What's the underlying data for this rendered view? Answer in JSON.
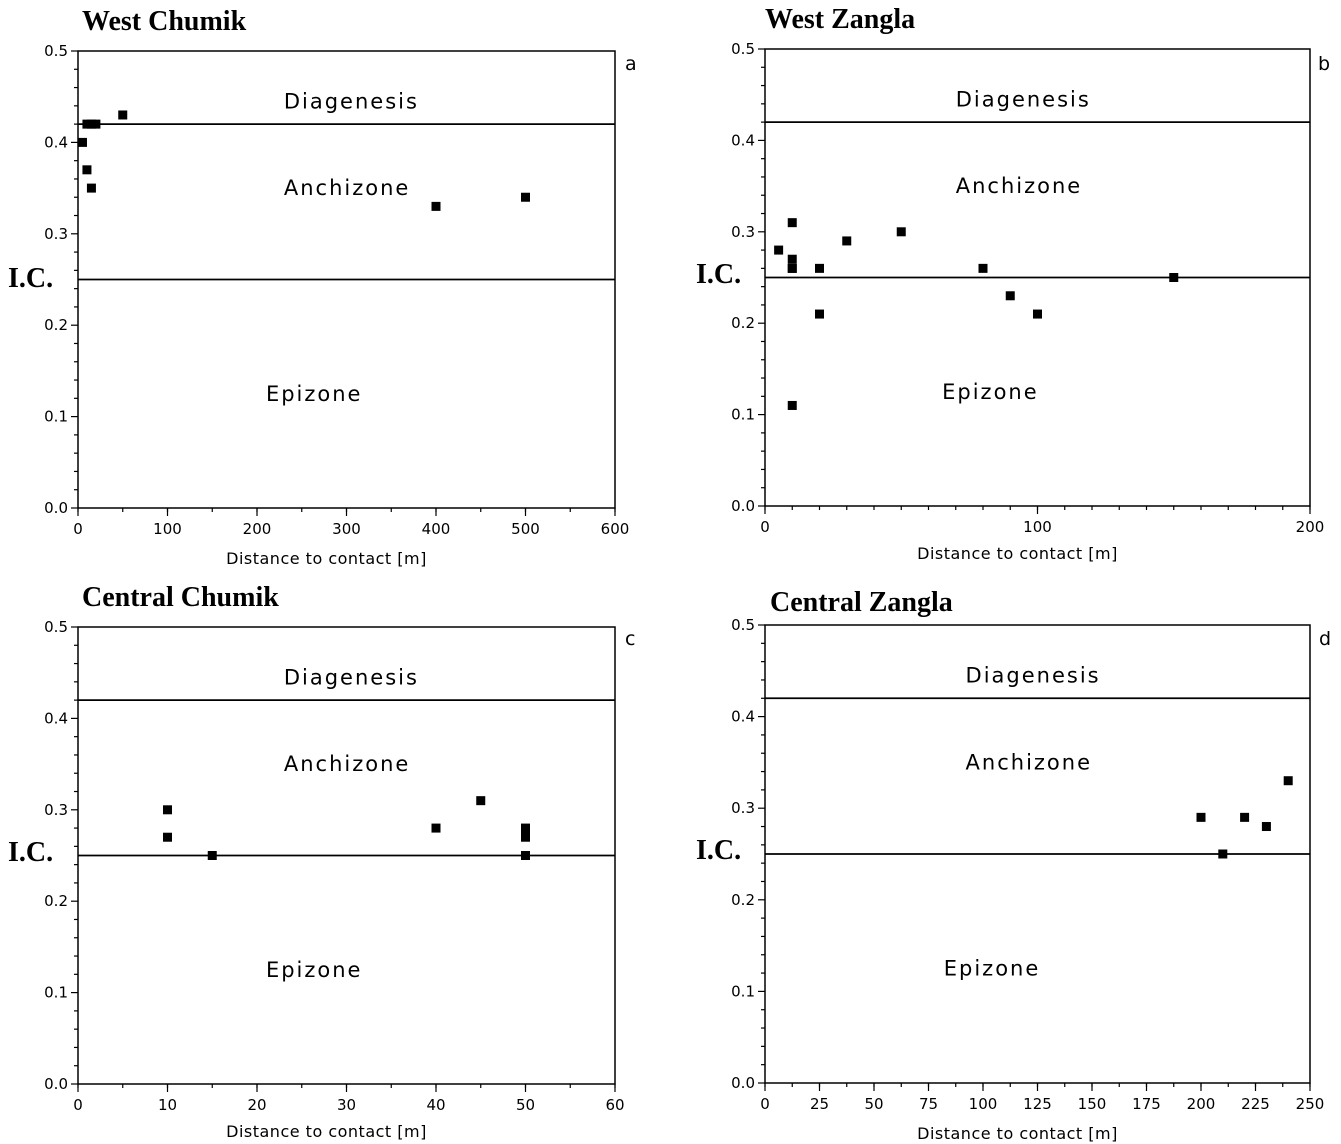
{
  "chart_data": [
    {
      "type": "scatter",
      "title": "West Chumik",
      "panel_label": "a",
      "xlabel": "Distance  to  contact  [m]",
      "ylabel": "I.C.",
      "xlim": [
        0,
        600
      ],
      "ylim": [
        0.0,
        0.5
      ],
      "xticks": [
        0,
        100,
        200,
        300,
        400,
        500,
        600
      ],
      "xtick_labels": [
        "0",
        "100",
        "200",
        "300",
        "400",
        "500",
        "600"
      ],
      "x_minor_step": 50,
      "yticks": [
        0.0,
        0.1,
        0.2,
        0.3,
        0.4,
        0.5
      ],
      "ytick_labels": [
        "0.0",
        "0.1",
        "0.2",
        "0.3",
        "0.4",
        "0.5"
      ],
      "zone_boundaries": [
        0.42,
        0.25
      ],
      "zones": [
        {
          "name": "Diagenesis",
          "y": 0.445,
          "x": 230
        },
        {
          "name": "Anchizone",
          "y": 0.35,
          "x": 230
        },
        {
          "name": "Epizone",
          "y": 0.125,
          "x": 210
        }
      ],
      "series": [
        {
          "x": [
            5,
            10,
            15,
            20,
            50,
            10,
            15,
            400,
            500
          ],
          "y": [
            0.4,
            0.42,
            0.42,
            0.42,
            0.43,
            0.37,
            0.35,
            0.33,
            0.34
          ]
        }
      ]
    },
    {
      "type": "scatter",
      "title": "West Zangla",
      "panel_label": "b",
      "xlabel": "Distance  to  contact  [m]",
      "ylabel": "I.C.",
      "xlim": [
        0,
        200
      ],
      "ylim": [
        0.0,
        0.5
      ],
      "xticks": [
        0,
        100,
        200
      ],
      "xtick_labels": [
        "0",
        "100",
        "200"
      ],
      "x_minor_step": 10,
      "yticks": [
        0.0,
        0.1,
        0.2,
        0.3,
        0.4,
        0.5
      ],
      "ytick_labels": [
        "0.0",
        "0.1",
        "0.2",
        "0.3",
        "0.4",
        "0.5"
      ],
      "zone_boundaries": [
        0.42,
        0.25
      ],
      "zones": [
        {
          "name": "Diagenesis",
          "y": 0.445,
          "x": 70
        },
        {
          "name": "Anchizone",
          "y": 0.35,
          "x": 70
        },
        {
          "name": "Epizone",
          "y": 0.125,
          "x": 65
        }
      ],
      "series": [
        {
          "x": [
            5,
            10,
            10,
            10,
            10,
            20,
            20,
            10,
            30,
            50,
            80,
            90,
            100,
            150
          ],
          "y": [
            0.28,
            0.31,
            0.27,
            0.26,
            0.11,
            0.26,
            0.21,
            0.26,
            0.29,
            0.3,
            0.26,
            0.23,
            0.21,
            0.25
          ]
        }
      ]
    },
    {
      "type": "scatter",
      "title": "Central Chumik",
      "panel_label": "c",
      "xlabel": "Distance  to  contact  [m]",
      "ylabel": "I.C.",
      "xlim": [
        0,
        60
      ],
      "ylim": [
        0.0,
        0.5
      ],
      "xticks": [
        0,
        10,
        20,
        30,
        40,
        50,
        60
      ],
      "xtick_labels": [
        "0",
        "10",
        "20",
        "30",
        "40",
        "50",
        "60"
      ],
      "x_minor_step": 5,
      "yticks": [
        0.0,
        0.1,
        0.2,
        0.3,
        0.4,
        0.5
      ],
      "ytick_labels": [
        "0.0",
        "0.1",
        "0.2",
        "0.3",
        "0.4",
        "0.5"
      ],
      "zone_boundaries": [
        0.42,
        0.25
      ],
      "zones": [
        {
          "name": "Diagenesis",
          "y": 0.445,
          "x": 23
        },
        {
          "name": "Anchizone",
          "y": 0.35,
          "x": 23
        },
        {
          "name": "Epizone",
          "y": 0.125,
          "x": 21
        }
      ],
      "series": [
        {
          "x": [
            10,
            10,
            15,
            40,
            45,
            50,
            50,
            50,
            50
          ],
          "y": [
            0.3,
            0.27,
            0.25,
            0.28,
            0.31,
            0.28,
            0.275,
            0.27,
            0.25
          ]
        }
      ]
    },
    {
      "type": "scatter",
      "title": "Central Zangla",
      "panel_label": "d",
      "xlabel": "Distance  to  contact  [m]",
      "ylabel": "I.C.",
      "xlim": [
        0,
        250
      ],
      "ylim": [
        0.0,
        0.5
      ],
      "xticks": [
        0,
        25,
        50,
        75,
        100,
        125,
        150,
        175,
        200,
        225,
        250
      ],
      "xtick_labels": [
        "0",
        "25",
        "50",
        "75",
        "100",
        "125",
        "150",
        "175",
        "200",
        "225",
        "250"
      ],
      "x_minor_step": 12.5,
      "yticks": [
        0.0,
        0.1,
        0.2,
        0.3,
        0.4,
        0.5
      ],
      "ytick_labels": [
        "0.0",
        "0.1",
        "0.2",
        "0.3",
        "0.4",
        "0.5"
      ],
      "zone_boundaries": [
        0.42,
        0.25
      ],
      "zones": [
        {
          "name": "Diagenesis",
          "y": 0.445,
          "x": 92
        },
        {
          "name": "Anchizone",
          "y": 0.35,
          "x": 92
        },
        {
          "name": "Epizone",
          "y": 0.125,
          "x": 82
        }
      ],
      "series": [
        {
          "x": [
            200,
            210,
            220,
            230,
            240
          ],
          "y": [
            0.29,
            0.25,
            0.29,
            0.28,
            0.33
          ]
        }
      ]
    }
  ]
}
